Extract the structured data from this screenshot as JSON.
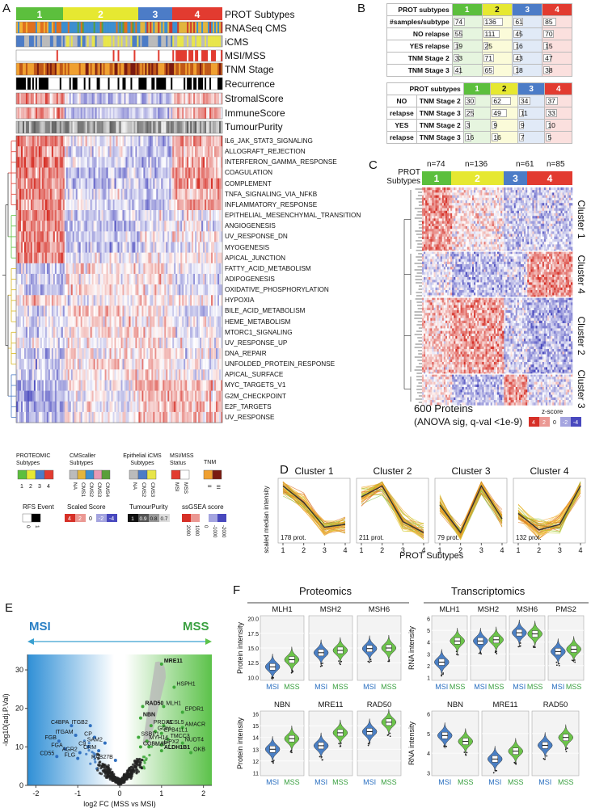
{
  "panel_labels": {
    "a": "A",
    "b": "B",
    "c": "C",
    "d": "D",
    "e": "E",
    "f": "F"
  },
  "colors": {
    "s1": "#5cbf3d",
    "s2": "#e6e831",
    "s3": "#4c7cc7",
    "s4": "#e23b30"
  },
  "panelA": {
    "subtypes": [
      "1",
      "2",
      "3",
      "4"
    ],
    "annotations": [
      "PROT Subtypes",
      "RNASeq CMS",
      "iCMS",
      "MSI/MSS",
      "TNM Stage",
      "Recurrence",
      "StromalScore",
      "ImmuneScore",
      "TumourPurity"
    ],
    "pathways": [
      "IL6_JAK_STAT3_SIGNALING",
      "ALLOGRAFT_REJECTION",
      "INTERFERON_GAMMA_RESPONSE",
      "COAGULATION",
      "COMPLEMENT",
      "TNFA_SIGNALING_VIA_NFKB",
      "INFLAMMATORY_RESPONSE",
      "EPITHELIAL_MESENCHYMAL_TRANSITION",
      "ANGIOGENESIS",
      "UV_RESPONSE_DN",
      "MYOGENESIS",
      "APICAL_JUNCTION",
      "FATTY_ACID_METABOLISM",
      "ADIPOGENESIS",
      "OXIDATIVE_PHOSPHORYLATION",
      "HYPOXIA",
      "BILE_ACID_METABOLISM",
      "HEME_METABOLISM",
      "MTORC1_SIGNALING",
      "UV_RESPONSE_UP",
      "DNA_REPAIR",
      "UNFOLDED_PROTEIN_RESPONSE",
      "APICAL_SURFACE",
      "MYC_TARGETS_V1",
      "G2M_CHECKPOINT",
      "E2F_TARGETS",
      "UV_RESPONSE"
    ],
    "legend": {
      "proteomic_title": "PROTEOMIC Subtypes",
      "proteomic_ticks": [
        "1",
        "2",
        "3",
        "4"
      ],
      "cms_title": "CMScaller Subtypes",
      "cms_ticks": [
        "NA",
        "CMS1",
        "CMS2",
        "CMS3",
        "CMS4"
      ],
      "icms_title": "Epithelial iCMS Subtypes",
      "icms_ticks": [
        "NA",
        "CMS2",
        "CMS3"
      ],
      "msi_title": "MSI/MSS Status",
      "msi_ticks": [
        "MSI",
        "MSS"
      ],
      "tnm_title": "TNM",
      "tnm_ticks": [
        "II",
        "III"
      ],
      "rfs_title": "RFS Event",
      "rfs_ticks": [
        "0",
        "1"
      ],
      "scaled_title": "Scaled Score",
      "scaled_ticks": [
        "4",
        "2",
        "0",
        "-2",
        "-4"
      ],
      "purity_title": "TumourPurity",
      "purity_ticks": [
        "1",
        "0.9",
        "0.8",
        "0.7"
      ],
      "ssgsea_title": "ssGSEA score",
      "ssgsea_ticks": [
        "2000",
        "1000",
        "0",
        "-1000",
        "-2000"
      ]
    }
  },
  "panelB": {
    "table1": {
      "header": [
        "PROT subtypes",
        "1",
        "2",
        "3",
        "4"
      ],
      "rows": [
        {
          "label": "#samples/subtype",
          "values": [
            74,
            136,
            61,
            85
          ]
        },
        {
          "label": "NO relapse",
          "values": [
            55,
            111,
            45,
            70
          ]
        },
        {
          "label": "YES relapse",
          "values": [
            19,
            25,
            16,
            15
          ]
        },
        {
          "label": "TNM Stage 2",
          "values": [
            33,
            71,
            43,
            47
          ]
        },
        {
          "label": "TNM Stage 3",
          "values": [
            41,
            65,
            18,
            38
          ]
        }
      ]
    },
    "table2": {
      "header": [
        "PROT subtypes",
        "1",
        "2",
        "3",
        "4"
      ],
      "rows": [
        {
          "group": "NO",
          "label": "TNM Stage 2",
          "values": [
            30,
            62,
            34,
            37
          ]
        },
        {
          "group": "relapse",
          "label": "TNM Stage 3",
          "values": [
            25,
            49,
            11,
            33
          ]
        },
        {
          "group": "YES",
          "label": "TNM Stage 2",
          "values": [
            3,
            9,
            9,
            10
          ]
        },
        {
          "group": "relapse",
          "label": "TNM Stage 3",
          "values": [
            16,
            16,
            7,
            5
          ]
        }
      ]
    }
  },
  "panelC": {
    "counts": [
      "n=74",
      "n=136",
      "n=61",
      "n=85"
    ],
    "prot_label": "PROT Subtypes",
    "subtypes": [
      "1",
      "2",
      "3",
      "4"
    ],
    "clusters": [
      "Cluster 1",
      "Cluster 4",
      "Cluster 2",
      "Cluster 3"
    ],
    "caption1": "600 Proteins",
    "caption2": "(ANOVA sig, q-val <1e-9)",
    "zscore_title": "z-score",
    "zscore_ticks": [
      "4",
      "2",
      "0",
      "-2",
      "-4"
    ]
  },
  "panelD": {
    "ylabel": "scaled median intensity",
    "xlabel": "PROT Subtypes",
    "chart_data": [
      {
        "type": "line",
        "title": "Cluster 1",
        "x": [
          1,
          2,
          3,
          4
        ],
        "median": [
          0.9,
          0.3,
          -0.6,
          -0.5
        ],
        "note": "178 prot."
      },
      {
        "type": "line",
        "title": "Cluster 2",
        "x": [
          1,
          2,
          3,
          4
        ],
        "median": [
          0.5,
          0.9,
          -0.4,
          -0.8
        ],
        "note": "211 prot."
      },
      {
        "type": "line",
        "title": "Cluster 3",
        "x": [
          1,
          2,
          3,
          4
        ],
        "median": [
          0.2,
          -0.8,
          0.9,
          -0.3
        ],
        "note": "79 prot."
      },
      {
        "type": "line",
        "title": "Cluster 4",
        "x": [
          1,
          2,
          3,
          4
        ],
        "median": [
          -0.1,
          -0.7,
          -0.5,
          0.9
        ],
        "note": "132 prot."
      }
    ]
  },
  "panelE": {
    "msi_label": "MSI",
    "mss_label": "MSS",
    "xlabel": "log2 FC (MSS vs MSI)",
    "ylabel": "-log10(adj.P.Val)",
    "xticks": [
      "-2",
      "-1",
      "0",
      "1",
      "2"
    ],
    "yticks": [
      "0",
      "10",
      "20",
      "30"
    ],
    "chart_data": {
      "type": "scatter",
      "xlim": [
        -2.2,
        2.2
      ],
      "ylim": [
        0,
        34
      ],
      "labeled_points": [
        {
          "label": "MRE11",
          "x": 1.0,
          "y": 31.5,
          "bold": true
        },
        {
          "label": "HSPH1",
          "x": 1.3,
          "y": 25.5,
          "bold": false
        },
        {
          "label": "MLH1",
          "x": 1.05,
          "y": 20.5,
          "bold": false
        },
        {
          "label": "EPDR1",
          "x": 1.5,
          "y": 19.0,
          "bold": false
        },
        {
          "label": "RAD50",
          "x": 0.55,
          "y": 20.5,
          "bold": true
        },
        {
          "label": "NBN",
          "x": 0.5,
          "y": 17.5,
          "bold": true
        },
        {
          "label": "PRDX5",
          "x": 0.75,
          "y": 15.5,
          "bold": false
        },
        {
          "label": "ACSL5",
          "x": 1.05,
          "y": 15.5,
          "bold": false
        },
        {
          "label": "AMACR",
          "x": 1.5,
          "y": 15.0,
          "bold": false
        },
        {
          "label": "GGH",
          "x": 0.85,
          "y": 14.0,
          "bold": false
        },
        {
          "label": "EPB41L1",
          "x": 1.0,
          "y": 13.5,
          "bold": false
        },
        {
          "label": "SSBP1",
          "x": 0.45,
          "y": 12.5,
          "bold": false
        },
        {
          "label": "TMCC3",
          "x": 1.15,
          "y": 12.0,
          "bold": false
        },
        {
          "label": "MYH14",
          "x": 0.65,
          "y": 11.5,
          "bold": false
        },
        {
          "label": "NUDT4",
          "x": 1.5,
          "y": 11.0,
          "bold": false
        },
        {
          "label": "GPX2",
          "x": 1.0,
          "y": 10.5,
          "bold": false
        },
        {
          "label": "COBLL1",
          "x": 0.5,
          "y": 10.0,
          "bold": false
        },
        {
          "label": "SMAP1",
          "x": 0.7,
          "y": 10.0,
          "bold": false
        },
        {
          "label": "ALDH1B1",
          "x": 1.0,
          "y": 9.0,
          "bold": true
        },
        {
          "label": "OKB",
          "x": 1.7,
          "y": 8.5,
          "bold": false
        },
        {
          "label": "C4BPA",
          "x": -1.15,
          "y": 15.5,
          "bold": false
        },
        {
          "label": "ITGB2",
          "x": -0.7,
          "y": 15.5,
          "bold": false
        },
        {
          "label": "ITGAM",
          "x": -1.05,
          "y": 13.0,
          "bold": false
        },
        {
          "label": "CP",
          "x": -0.6,
          "y": 12.5,
          "bold": false
        },
        {
          "label": "FGB",
          "x": -1.45,
          "y": 11.5,
          "bold": false
        },
        {
          "label": "SAM2",
          "x": -0.35,
          "y": 11.0,
          "bold": false
        },
        {
          "label": "C9",
          "x": -0.75,
          "y": 10.0,
          "bold": false
        },
        {
          "label": "FGA",
          "x": -1.3,
          "y": 9.5,
          "bold": false
        },
        {
          "label": "CRM",
          "x": -0.5,
          "y": 9.0,
          "bold": false
        },
        {
          "label": "AGR2",
          "x": -0.95,
          "y": 8.5,
          "bold": false
        },
        {
          "label": "CD55",
          "x": -1.5,
          "y": 7.5,
          "bold": false
        },
        {
          "label": "FLG",
          "x": -1.0,
          "y": 7.0,
          "bold": false
        },
        {
          "label": "RAB27B",
          "x": -0.1,
          "y": 6.5,
          "bold": false
        }
      ]
    }
  },
  "panelF": {
    "proteomics_title": "Proteomics",
    "transcriptomics_title": "Transcriptomics",
    "prot_ylabel": "Protein intensity",
    "rna_ylabel": "RNA intensity",
    "group_labels": [
      "MSI",
      "MSS"
    ],
    "prot_top": {
      "genes": [
        "MLH1",
        "MSH2",
        "MSH6"
      ],
      "yticks": [
        "10.0",
        "12.5",
        "15.0",
        "17.5",
        "20.0"
      ]
    },
    "prot_bottom": {
      "genes": [
        "NBN",
        "MRE11",
        "RAD50"
      ],
      "yticks": [
        "11",
        "12",
        "13",
        "14",
        "15",
        "16"
      ]
    },
    "rna_top": {
      "genes": [
        "MLH1",
        "MSH2",
        "MSH6",
        "PMS2"
      ],
      "yticks": [
        "1",
        "2",
        "3",
        "4",
        "5",
        "6"
      ]
    },
    "rna_bottom": {
      "genes": [
        "NBN",
        "MRE11",
        "RAD50"
      ],
      "yticks": [
        "3",
        "4",
        "5",
        "6"
      ]
    },
    "chart_data": [
      {
        "type": "violin",
        "panel": "proteomics",
        "gene": "MLH1",
        "median_msi": 11.8,
        "median_mss": 13.0
      },
      {
        "type": "violin",
        "panel": "proteomics",
        "gene": "MSH2",
        "median_msi": 14.2,
        "median_mss": 14.6
      },
      {
        "type": "violin",
        "panel": "proteomics",
        "gene": "MSH6",
        "median_msi": 14.9,
        "median_mss": 15.0
      },
      {
        "type": "violin",
        "panel": "proteomics",
        "gene": "NBN",
        "median_msi": 13.0,
        "median_mss": 13.9
      },
      {
        "type": "violin",
        "panel": "proteomics",
        "gene": "MRE11",
        "median_msi": 13.3,
        "median_mss": 14.4
      },
      {
        "type": "violin",
        "panel": "proteomics",
        "gene": "RAD50",
        "median_msi": 14.5,
        "median_mss": 15.3
      },
      {
        "type": "violin",
        "panel": "transcriptomics",
        "gene": "MLH1",
        "median_msi": 2.3,
        "median_mss": 4.1
      },
      {
        "type": "violin",
        "panel": "transcriptomics",
        "gene": "MSH2",
        "median_msi": 4.1,
        "median_mss": 4.2
      },
      {
        "type": "violin",
        "panel": "transcriptomics",
        "gene": "MSH6",
        "median_msi": 4.8,
        "median_mss": 4.7
      },
      {
        "type": "violin",
        "panel": "transcriptomics",
        "gene": "PMS2",
        "median_msi": 3.2,
        "median_mss": 3.4
      },
      {
        "type": "violin",
        "panel": "transcriptomics",
        "gene": "NBN",
        "median_msi": 4.9,
        "median_mss": 4.6
      },
      {
        "type": "violin",
        "panel": "transcriptomics",
        "gene": "MRE11",
        "median_msi": 3.7,
        "median_mss": 4.1
      },
      {
        "type": "violin",
        "panel": "transcriptomics",
        "gene": "RAD50",
        "median_msi": 4.4,
        "median_mss": 4.8
      }
    ]
  }
}
